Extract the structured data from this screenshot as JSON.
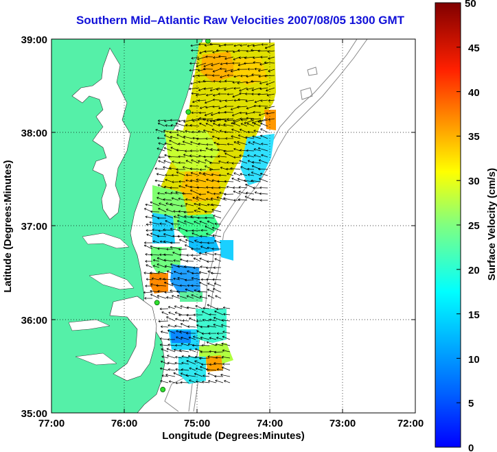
{
  "title": "Southern Mid–Atlantic Raw Velocities 2007/08/05 1300 GMT",
  "map": {
    "x_axis": {
      "label": "Longitude (Degrees:Minutes)",
      "ticks": [
        "77:00",
        "76:00",
        "75:00",
        "74:00",
        "73:00",
        "72:00"
      ],
      "range": [
        -77,
        -72
      ]
    },
    "y_axis": {
      "label": "Latitude (Degrees:Minutes)",
      "ticks": [
        "39:00",
        "38:00",
        "37:00",
        "36:00",
        "35:00"
      ],
      "range": [
        35,
        39
      ]
    },
    "grid": "dotted",
    "land_color": "#55f0a8",
    "colorbar": {
      "label": "Surface Velocity (cm/s)",
      "ticks": [
        "50",
        "45",
        "40",
        "35",
        "30",
        "25",
        "20",
        "15",
        "10",
        "5",
        "0"
      ],
      "range": [
        0,
        50
      ],
      "colormap": "jet"
    },
    "hf_radar_sites": [
      {
        "lon": -74.85,
        "lat": 38.98
      },
      {
        "lon": -75.12,
        "lat": 38.22
      },
      {
        "lon": -75.55,
        "lat": 36.18
      },
      {
        "lon": -75.47,
        "lat": 35.25
      }
    ]
  }
}
